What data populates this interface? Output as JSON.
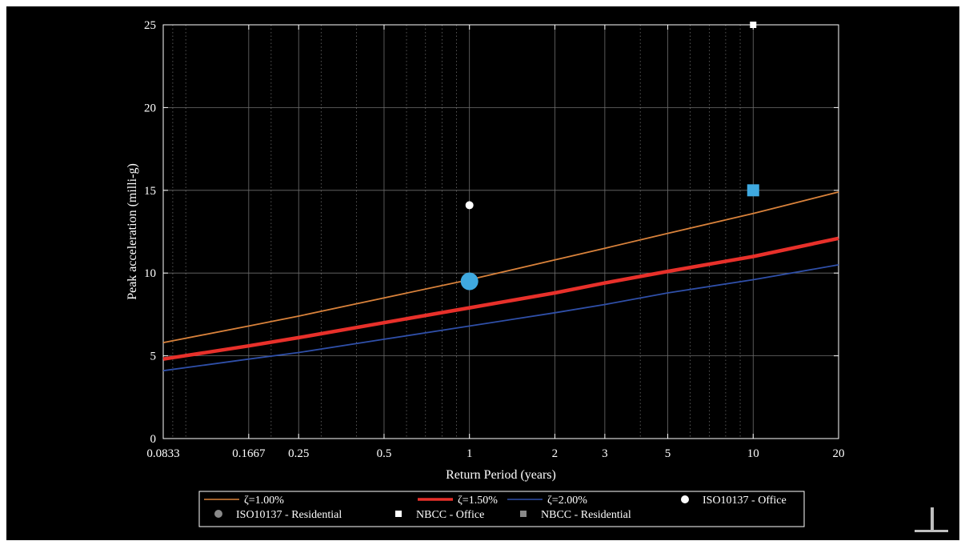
{
  "chart_data": {
    "type": "line",
    "xlabel": "Return Period (years)",
    "ylabel": "Peak acceleration (milli-g)",
    "x_scale": "log",
    "xlim": [
      0.0833,
      20
    ],
    "ylim": [
      0,
      25
    ],
    "xticks": [
      0.0833,
      0.1667,
      0.25,
      0.5,
      1,
      2,
      3,
      5,
      10,
      20
    ],
    "xtick_labels": [
      "0.0833",
      "0.1667",
      "0.25",
      "0.5",
      "1",
      "2",
      "3",
      "5",
      "10",
      "20"
    ],
    "yticks": [
      0,
      5,
      10,
      15,
      20,
      25
    ],
    "ytick_labels": [
      "0",
      "5",
      "10",
      "15",
      "20",
      "25"
    ],
    "grid": true,
    "legend_position": "bottom",
    "series": [
      {
        "name": "ζ=1.00%",
        "type": "line",
        "color": "#d9823b",
        "x": [
          0.0833,
          0.1667,
          0.25,
          0.5,
          1,
          2,
          3,
          5,
          10,
          20
        ],
        "y": [
          5.8,
          6.8,
          7.4,
          8.5,
          9.6,
          10.8,
          11.5,
          12.4,
          13.6,
          14.9
        ]
      },
      {
        "name": "ζ=1.50%",
        "type": "line",
        "color": "#e8302a",
        "x": [
          0.0833,
          0.1667,
          0.25,
          0.5,
          1,
          2,
          3,
          5,
          10,
          20
        ],
        "y": [
          4.8,
          5.6,
          6.1,
          7.0,
          7.9,
          8.8,
          9.4,
          10.1,
          11.0,
          12.1
        ]
      },
      {
        "name": "ζ=2.00%",
        "type": "line",
        "color": "#2f4fa8",
        "x": [
          0.0833,
          0.1667,
          0.25,
          0.5,
          1,
          2,
          3,
          5,
          10,
          20
        ],
        "y": [
          4.1,
          4.8,
          5.2,
          6.0,
          6.8,
          7.6,
          8.1,
          8.8,
          9.6,
          10.5
        ]
      },
      {
        "name": "ISO10137 - Office",
        "type": "scatter",
        "marker": "circle",
        "color": "#ffffff",
        "x": [
          1
        ],
        "y": [
          14.1
        ]
      },
      {
        "name": "ISO10137 - Residential",
        "type": "scatter",
        "marker": "circle",
        "color": "#3fa9e0",
        "legend_color": "#8a8a8a",
        "x": [
          1
        ],
        "y": [
          9.5
        ]
      },
      {
        "name": "NBCC - Office",
        "type": "scatter",
        "marker": "square",
        "color": "#ffffff",
        "x": [
          10
        ],
        "y": [
          25
        ]
      },
      {
        "name": "NBCC - Residential",
        "type": "scatter",
        "marker": "square",
        "color": "#3fa9e0",
        "legend_color": "#8a8a8a",
        "x": [
          10
        ],
        "y": [
          15
        ]
      }
    ]
  }
}
